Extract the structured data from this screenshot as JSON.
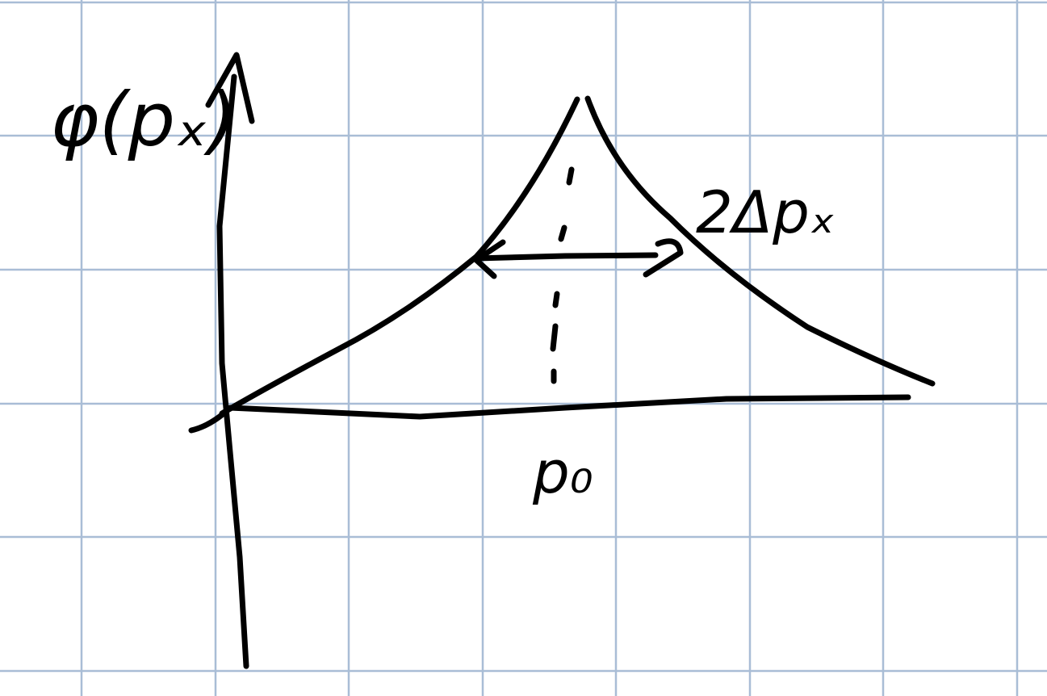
{
  "labels": {
    "y_axis": "φ(pₓ)",
    "width": "2Δpₓ",
    "center": "p₀"
  }
}
